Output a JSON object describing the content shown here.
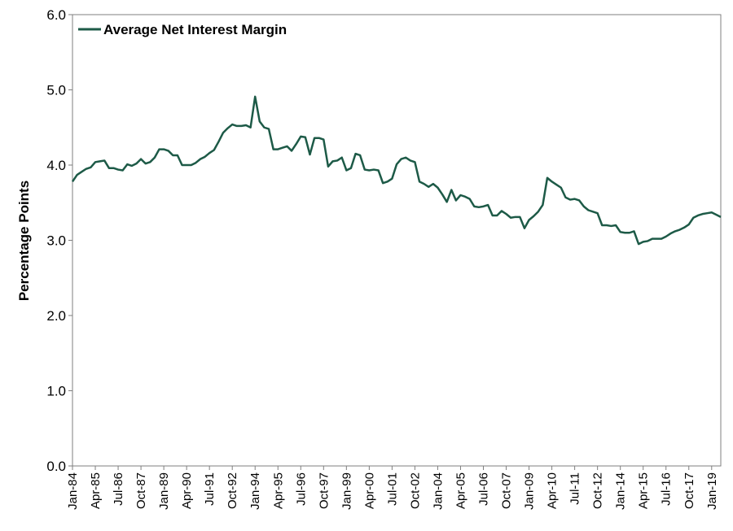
{
  "chart_data": {
    "type": "line",
    "title": "",
    "xlabel": "",
    "ylabel": "Percentage Points",
    "ylim": [
      0,
      6
    ],
    "yticks": [
      "0.0",
      "1.0",
      "2.0",
      "3.0",
      "4.0",
      "5.0",
      "6.0"
    ],
    "grid": false,
    "legend_position": "top-left",
    "x_tick_labels": [
      "Jan-84",
      "Apr-85",
      "Jul-86",
      "Oct-87",
      "Jan-89",
      "Apr-90",
      "Jul-91",
      "Oct-92",
      "Jan-94",
      "Apr-95",
      "Jul-96",
      "Oct-97",
      "Jan-99",
      "Apr-00",
      "Jul-01",
      "Oct-02",
      "Jan-04",
      "Apr-05",
      "Jul-06",
      "Oct-07",
      "Jan-09",
      "Apr-10",
      "Jul-11",
      "Oct-12",
      "Jan-14",
      "Apr-15",
      "Jul-16",
      "Oct-17",
      "Jan-19"
    ],
    "series": [
      {
        "name": "Average Net Interest Margin",
        "color": "#1d5a47",
        "values": [
          3.78,
          3.87,
          3.91,
          3.95,
          3.97,
          4.04,
          4.05,
          4.06,
          3.96,
          3.96,
          3.94,
          3.93,
          4.01,
          3.99,
          4.02,
          4.08,
          4.02,
          4.04,
          4.1,
          4.21,
          4.21,
          4.19,
          4.13,
          4.13,
          4.0,
          4.0,
          4.0,
          4.03,
          4.08,
          4.11,
          4.16,
          4.2,
          4.31,
          4.43,
          4.49,
          4.54,
          4.52,
          4.52,
          4.53,
          4.5,
          4.91,
          4.58,
          4.5,
          4.48,
          4.21,
          4.21,
          4.23,
          4.25,
          4.19,
          4.28,
          4.38,
          4.37,
          4.14,
          4.36,
          4.36,
          4.34,
          3.98,
          4.05,
          4.06,
          4.1,
          3.93,
          3.96,
          4.15,
          4.13,
          3.94,
          3.93,
          3.94,
          3.93,
          3.76,
          3.78,
          3.82,
          4.01,
          4.08,
          4.1,
          4.06,
          4.04,
          3.78,
          3.75,
          3.71,
          3.75,
          3.7,
          3.61,
          3.51,
          3.67,
          3.53,
          3.6,
          3.58,
          3.55,
          3.45,
          3.44,
          3.45,
          3.47,
          3.33,
          3.33,
          3.39,
          3.35,
          3.3,
          3.31,
          3.31,
          3.16,
          3.27,
          3.32,
          3.38,
          3.47,
          3.83,
          3.78,
          3.74,
          3.7,
          3.57,
          3.54,
          3.55,
          3.53,
          3.45,
          3.4,
          3.38,
          3.36,
          3.2,
          3.2,
          3.19,
          3.2,
          3.11,
          3.1,
          3.1,
          3.12,
          2.95,
          2.98,
          2.99,
          3.02,
          3.02,
          3.02,
          3.05,
          3.09,
          3.12,
          3.14,
          3.17,
          3.21,
          3.3,
          3.33,
          3.35,
          3.36,
          3.37,
          3.34,
          3.31
        ]
      }
    ]
  }
}
